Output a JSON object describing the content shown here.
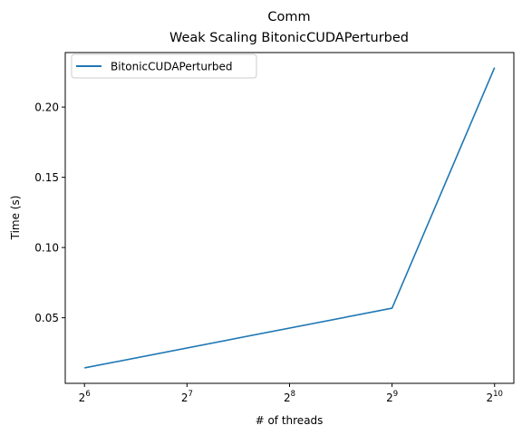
{
  "chart_data": {
    "type": "line",
    "title_line1": "Comm",
    "title_line2": "Weak Scaling BitonicCUDAPerturbed",
    "xlabel": "# of threads",
    "ylabel": "Time (s)",
    "x_scale": "log2",
    "x_ticks": [
      {
        "value": 64,
        "base": "2",
        "exp": "6"
      },
      {
        "value": 128,
        "base": "2",
        "exp": "7"
      },
      {
        "value": 256,
        "base": "2",
        "exp": "8"
      },
      {
        "value": 512,
        "base": "2",
        "exp": "9"
      },
      {
        "value": 1024,
        "base": "2",
        "exp": "10"
      }
    ],
    "y_ticks": [
      {
        "value": 0.05,
        "label": "0.05"
      },
      {
        "value": 0.1,
        "label": "0.10"
      },
      {
        "value": 0.15,
        "label": "0.15"
      },
      {
        "value": 0.2,
        "label": "0.20"
      }
    ],
    "xlim": [
      56.2,
      1166.4
    ],
    "ylim": [
      0.0033,
      0.2388
    ],
    "grid": false,
    "legend_position": "top-left",
    "series": [
      {
        "name": "BitonicCUDAPerturbed",
        "color": "#1f77b4",
        "x": [
          64,
          512,
          1024
        ],
        "y": [
          0.0143,
          0.0568,
          0.2281
        ]
      }
    ]
  }
}
